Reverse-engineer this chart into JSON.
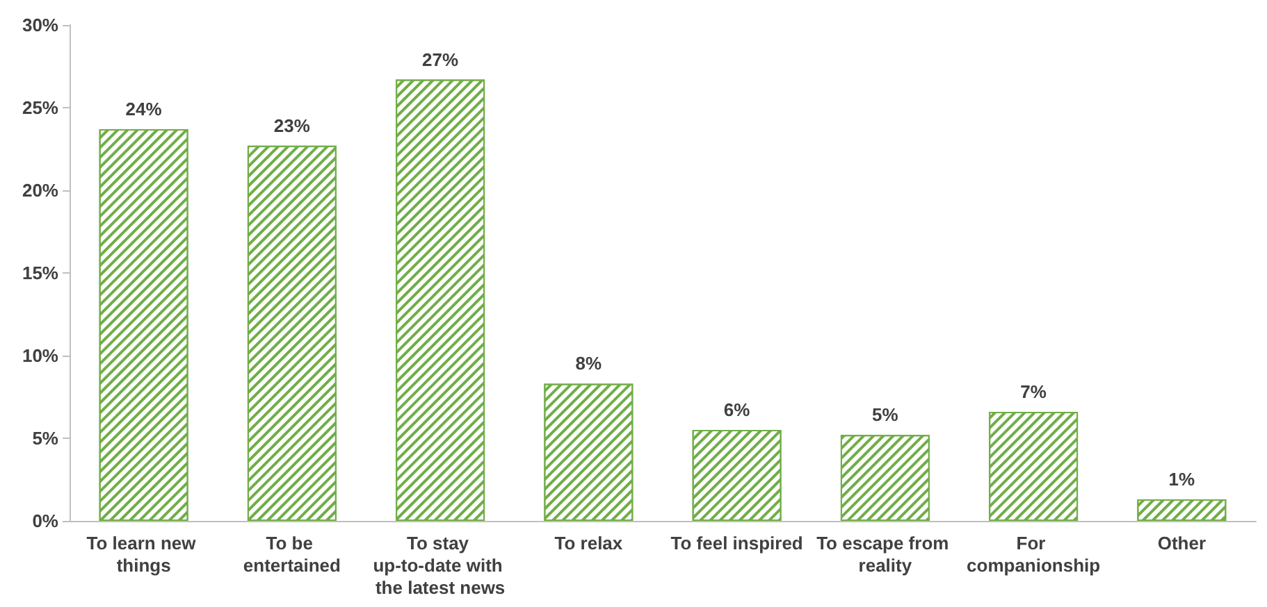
{
  "chart_data": {
    "type": "bar",
    "categories": [
      "To learn new things",
      "To be entertained",
      "To stay up-to-date with the latest news",
      "To relax",
      "To feel inspired",
      "To escape from reality",
      "For companionship",
      "Other"
    ],
    "values": [
      23.7,
      22.7,
      26.7,
      8.3,
      5.5,
      5.2,
      6.6,
      1.3
    ],
    "value_labels": [
      "24%",
      "23%",
      "27%",
      "8%",
      "6%",
      "5%",
      "7%",
      "1%"
    ],
    "color": "#70ad47",
    "ylim": [
      0,
      30
    ],
    "yticks": [
      {
        "value": 0,
        "label": "0%"
      },
      {
        "value": 5,
        "label": "5%"
      },
      {
        "value": 10,
        "label": "10%"
      },
      {
        "value": 15,
        "label": "15%"
      },
      {
        "value": 20,
        "label": "20%"
      },
      {
        "value": 25,
        "label": "25%"
      },
      {
        "value": 30,
        "label": "30%"
      }
    ],
    "grid": false
  }
}
